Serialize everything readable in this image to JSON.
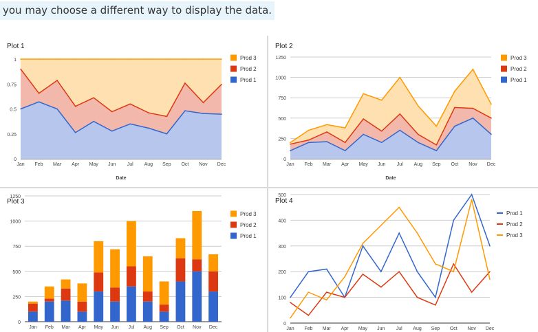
{
  "banner": {
    "text": "you may choose a different way to display the data."
  },
  "colors": {
    "prod1": "#3366cc",
    "prod2": "#dc3912",
    "prod3": "#ff9900",
    "prod1_fill": "#b7c6ed",
    "prod2_fill": "#f2b8ab",
    "prod3_fill": "#ffe0b0"
  },
  "chart_data": [
    {
      "id": "plot1",
      "type": "area",
      "stacking": "percent",
      "title": "Plot 1",
      "xlabel": "Date",
      "ylabel": "",
      "ylim": [
        0,
        1
      ],
      "yticks": [
        "0",
        "0.25",
        "0.5",
        "0.75",
        "1"
      ],
      "yticks_values": [
        0,
        0.25,
        0.5,
        0.75,
        1
      ],
      "categories": [
        "Jan",
        "Feb",
        "Mar",
        "Apr",
        "May",
        "Jun",
        "Jul",
        "Aug",
        "Sep",
        "Oct",
        "Nov",
        "Dec"
      ],
      "legend_position": "right",
      "legend": [
        "Prod 3",
        "Prod 2",
        "Prod 1"
      ],
      "series": [
        {
          "name": "Prod 1",
          "values": [
            100,
            200,
            210,
            100,
            300,
            200,
            350,
            200,
            100,
            400,
            500,
            300
          ]
        },
        {
          "name": "Prod 2",
          "values": [
            80,
            30,
            120,
            100,
            190,
            140,
            200,
            100,
            70,
            230,
            120,
            200
          ]
        },
        {
          "name": "Prod 3",
          "values": [
            20,
            120,
            90,
            180,
            310,
            380,
            450,
            350,
            230,
            200,
            480,
            170
          ]
        }
      ]
    },
    {
      "id": "plot2",
      "type": "area",
      "stacking": "stacked",
      "title": "Plot 2",
      "xlabel": "Date",
      "ylabel": "",
      "ylim": [
        0,
        1250
      ],
      "yticks": [
        "0",
        "250",
        "500",
        "750",
        "1000",
        "1250"
      ],
      "yticks_values": [
        0,
        250,
        500,
        750,
        1000,
        1250
      ],
      "categories": [
        "Jan",
        "Feb",
        "Mar",
        "Apr",
        "May",
        "Jun",
        "Jul",
        "Aug",
        "Sep",
        "Oct",
        "Nov",
        "Dec"
      ],
      "legend_position": "right",
      "legend": [
        "Prod 3",
        "Prod 2",
        "Prod 1"
      ],
      "series": [
        {
          "name": "Prod 1",
          "values": [
            100,
            200,
            210,
            100,
            300,
            200,
            350,
            200,
            100,
            400,
            500,
            300
          ]
        },
        {
          "name": "Prod 2",
          "values": [
            80,
            30,
            120,
            100,
            190,
            140,
            200,
            100,
            70,
            230,
            120,
            200
          ]
        },
        {
          "name": "Prod 3",
          "values": [
            20,
            120,
            90,
            180,
            310,
            380,
            450,
            350,
            230,
            200,
            480,
            170
          ]
        }
      ]
    },
    {
      "id": "plot3",
      "type": "bar",
      "stacking": "stacked",
      "title": "Plot 3",
      "xlabel": "",
      "ylabel": "",
      "ylim": [
        0,
        1250
      ],
      "yticks": [
        "0",
        "250",
        "500",
        "750",
        "1000",
        "1250"
      ],
      "yticks_values": [
        0,
        250,
        500,
        750,
        1000,
        1250
      ],
      "categories": [
        "Jan",
        "Feb",
        "Mar",
        "Apr",
        "May",
        "Jun",
        "Jul",
        "Aug",
        "Sep",
        "Oct",
        "Nov",
        "Dec"
      ],
      "legend_position": "right",
      "legend": [
        "Prod 3",
        "Prod 2",
        "Prod 1"
      ],
      "series": [
        {
          "name": "Prod 1",
          "values": [
            100,
            200,
            210,
            100,
            300,
            200,
            350,
            200,
            100,
            400,
            500,
            300
          ]
        },
        {
          "name": "Prod 2",
          "values": [
            80,
            30,
            120,
            100,
            190,
            140,
            200,
            100,
            70,
            230,
            120,
            200
          ]
        },
        {
          "name": "Prod 3",
          "values": [
            20,
            120,
            90,
            180,
            310,
            380,
            450,
            350,
            230,
            200,
            480,
            170
          ]
        }
      ]
    },
    {
      "id": "plot4",
      "type": "line",
      "stacking": "none",
      "title": "Plot 4",
      "xlabel": "",
      "ylabel": "",
      "ylim": [
        0,
        500
      ],
      "yticks": [
        "0",
        "100",
        "200",
        "300",
        "400",
        "500"
      ],
      "yticks_values": [
        0,
        100,
        200,
        300,
        400,
        500
      ],
      "categories": [
        "Jan",
        "Feb",
        "Mar",
        "Apr",
        "May",
        "Jun",
        "Jul",
        "Aug",
        "Sep",
        "Oct",
        "Nov",
        "Dec"
      ],
      "legend_position": "right",
      "legend": [
        "Prod 1",
        "Prod 2",
        "Prod 3"
      ],
      "series": [
        {
          "name": "Prod 1",
          "values": [
            100,
            200,
            210,
            100,
            300,
            200,
            350,
            200,
            100,
            400,
            500,
            300
          ]
        },
        {
          "name": "Prod 2",
          "values": [
            80,
            30,
            120,
            100,
            190,
            140,
            200,
            100,
            70,
            230,
            120,
            200
          ]
        },
        {
          "name": "Prod 3",
          "values": [
            20,
            120,
            90,
            180,
            310,
            380,
            450,
            350,
            230,
            200,
            480,
            170
          ]
        }
      ]
    }
  ]
}
